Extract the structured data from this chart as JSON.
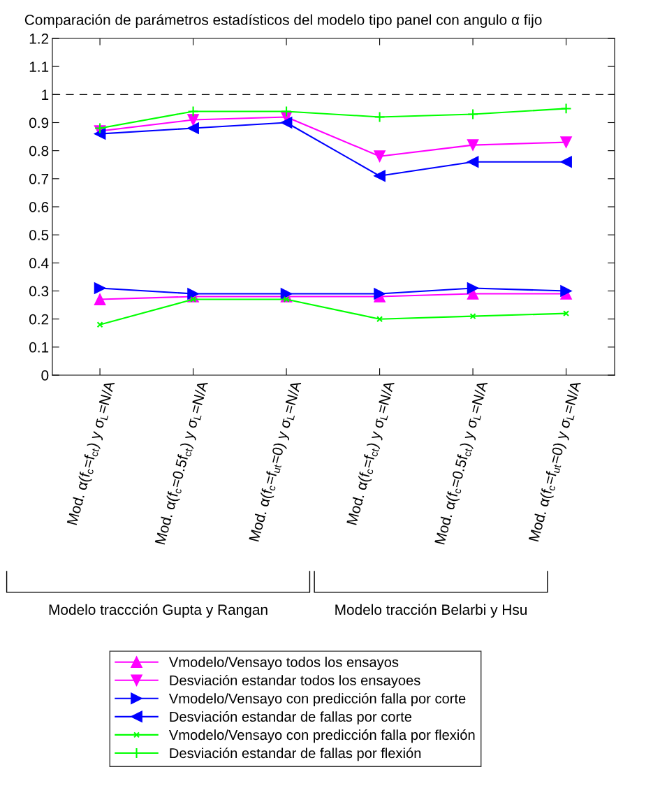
{
  "chart_data": {
    "type": "line",
    "title": "Comparación de parámetros estadísticos del modelo tipo panel con angulo α fijo",
    "categories": [
      "Mod. α(f$_{c}$=f$_{ct}$) y σ$_{L}$=N/A",
      "Mod. α(f$_{c}$=0.5f$_{ct}$) y σ$_{L}$=N/A",
      "Mod. α(f$_{c}$=f$_{ut}$=0) y σ$_{L}$=N/A",
      "Mod. α(f$_{c}$=f$_{ct}$) y σ$_{L}$=N/A",
      "Mod. α(f$_{c}$=0.5f$_{ct}$) y σ$_{L}$=N/A",
      "Mod. α(f$_{c}$=f$_{ut}$=0) y σ$_{L}$=N/A"
    ],
    "series": [
      {
        "name": "Vmodelo/Vensayo todos los ensayos",
        "color": "#ff00ff",
        "marker": "triangle-up",
        "values": [
          0.27,
          0.28,
          0.28,
          0.28,
          0.29,
          0.29
        ]
      },
      {
        "name": "Desviación estandar todos los ensayoes",
        "color": "#ff00ff",
        "marker": "triangle-down",
        "values": [
          0.87,
          0.91,
          0.92,
          0.78,
          0.82,
          0.83
        ]
      },
      {
        "name": "Vmodelo/Vensayo con predicción falla por corte",
        "color": "#0000ff",
        "marker": "triangle-right",
        "values": [
          0.31,
          0.29,
          0.29,
          0.29,
          0.31,
          0.3
        ]
      },
      {
        "name": "Desviación estandar de fallas por corte",
        "color": "#0000ff",
        "marker": "triangle-left",
        "values": [
          0.86,
          0.88,
          0.9,
          0.71,
          0.76,
          0.76
        ]
      },
      {
        "name": "Vmodelo/Vensayo con predicción falla por flexión",
        "color": "#00ff00",
        "marker": "cross",
        "values": [
          0.18,
          0.27,
          0.27,
          0.2,
          0.21,
          0.22
        ]
      },
      {
        "name": "Desviación estandar de fallas por flexión",
        "color": "#00ff00",
        "marker": "plus",
        "values": [
          0.88,
          0.94,
          0.94,
          0.92,
          0.93,
          0.95
        ]
      }
    ],
    "ylim": [
      0,
      1.2
    ],
    "yticks": [
      0,
      0.1,
      0.2,
      0.3,
      0.4,
      0.5,
      0.6,
      0.7,
      0.8,
      0.9,
      1,
      1.1,
      1.2
    ],
    "ref_lines": [
      {
        "axis": "y",
        "value": 1,
        "color": "#000000",
        "line_style": "dashed"
      }
    ],
    "annotations": [
      "Modelo traccción Gupta y Rangan",
      "Modelo tracción Belarbi y Hsu"
    ],
    "grid": false,
    "legend": "bottom"
  }
}
